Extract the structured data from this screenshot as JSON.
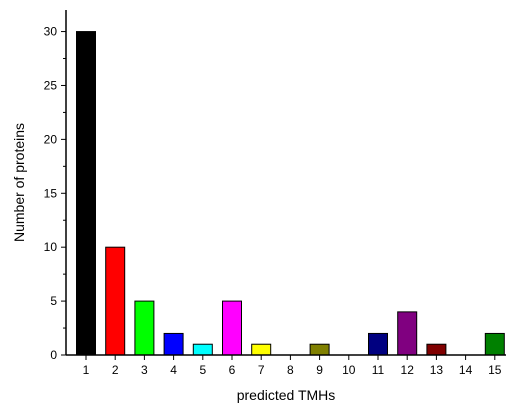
{
  "chart_data": {
    "type": "bar",
    "title": "",
    "xlabel": "predicted TMHs",
    "ylabel": "Number of proteins",
    "categories": [
      "1",
      "2",
      "3",
      "4",
      "5",
      "6",
      "7",
      "8",
      "9",
      "10",
      "11",
      "12",
      "13",
      "14",
      "15"
    ],
    "values": [
      30,
      10,
      5,
      2,
      1,
      5,
      1,
      0,
      1,
      0,
      2,
      4,
      1,
      0,
      2
    ],
    "colors": [
      "#000000",
      "#ff0000",
      "#00ff00",
      "#0000ff",
      "#00ffff",
      "#ff00ff",
      "#ffff00",
      "#808080",
      "#808000",
      "#808080",
      "#000080",
      "#800080",
      "#800000",
      "#808080",
      "#008000"
    ],
    "ylim": [
      0,
      32
    ],
    "yticks": [
      0,
      5,
      10,
      15,
      20,
      25,
      30
    ],
    "grid": false,
    "legend": "none"
  }
}
